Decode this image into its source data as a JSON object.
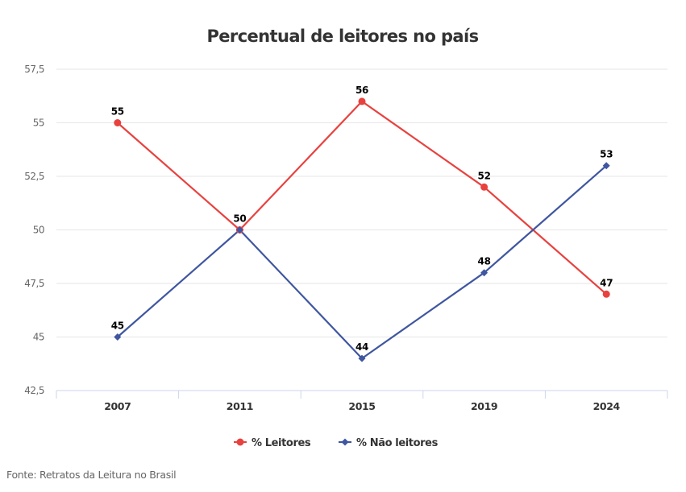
{
  "chart_data": {
    "type": "line",
    "title": "Percentual de leitores no país",
    "xlabel": "",
    "ylabel": "",
    "categories": [
      "2007",
      "2011",
      "2015",
      "2019",
      "2024"
    ],
    "series": [
      {
        "name": "% Leitores",
        "color": "#e8423f",
        "marker": "circle",
        "values": [
          55,
          50,
          56,
          52,
          47
        ]
      },
      {
        "name": "% Não leitores",
        "color": "#3f56a0",
        "marker": "diamond",
        "values": [
          45,
          50,
          44,
          48,
          53
        ]
      }
    ],
    "ylim": [
      42.5,
      57.5
    ],
    "yticks": [
      "42,5",
      "45",
      "47,5",
      "50",
      "52,5",
      "55",
      "57,5"
    ],
    "ytick_values": [
      42.5,
      45,
      47.5,
      50,
      52.5,
      55,
      57.5
    ],
    "grid": true,
    "legend_position": "bottom-center",
    "data_labels": true
  },
  "source": "Fonte: Retratos da Leitura no Brasil"
}
